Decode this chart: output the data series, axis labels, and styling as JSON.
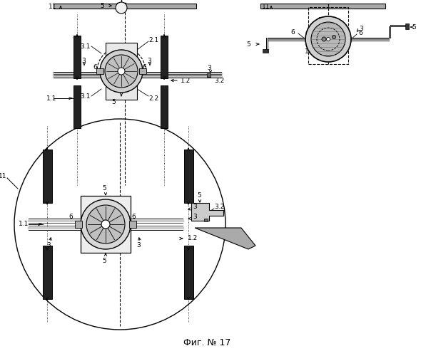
{
  "title": "Фиг. № 17",
  "bg_color": "#ffffff",
  "line_color": "#000000",
  "fig_width": 6.11,
  "fig_height": 5.0,
  "dpi": 100
}
